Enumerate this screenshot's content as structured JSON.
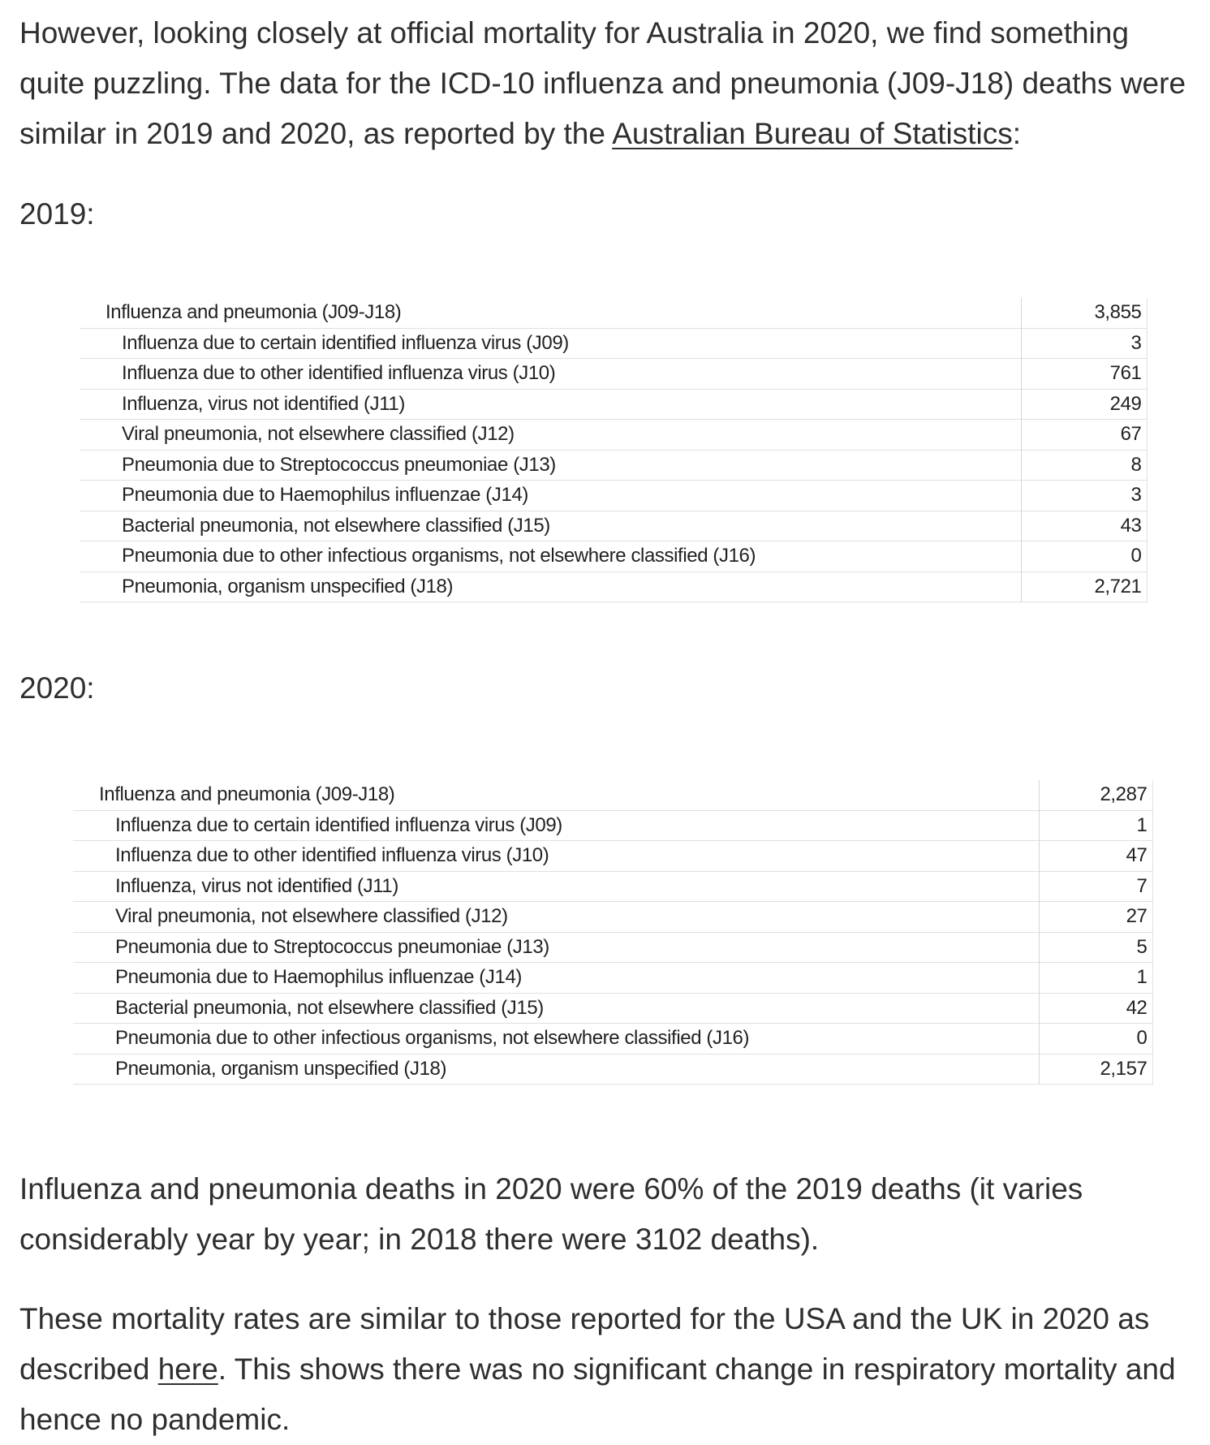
{
  "intro": {
    "before_link": "However, looking closely at official mortality for Australia in 2020, we find something quite puzzling. The data for the ICD-10 influenza and pneumonia (J09-J18) deaths were similar in 2019 and 2020, as reported by the ",
    "link_text": "Australian Bureau of Statistics",
    "after_link": ":"
  },
  "section_2019": {
    "heading": "2019:",
    "rows": [
      {
        "label": "Influenza and pneumonia (J09-J18)",
        "value": "3,855"
      },
      {
        "label": "Influenza due to certain identified influenza virus (J09)",
        "value": "3"
      },
      {
        "label": "Influenza due to other identified influenza virus (J10)",
        "value": "761"
      },
      {
        "label": "Influenza, virus not identified (J11)",
        "value": "249"
      },
      {
        "label": "Viral pneumonia, not elsewhere classified (J12)",
        "value": "67"
      },
      {
        "label": "Pneumonia due to Streptococcus pneumoniae (J13)",
        "value": "8"
      },
      {
        "label": "Pneumonia due to Haemophilus influenzae (J14)",
        "value": "3"
      },
      {
        "label": "Bacterial pneumonia, not elsewhere classified (J15)",
        "value": "43"
      },
      {
        "label": "Pneumonia due to other infectious organisms, not elsewhere classified (J16)",
        "value": "0"
      },
      {
        "label": "Pneumonia, organism unspecified (J18)",
        "value": "2,721"
      }
    ]
  },
  "section_2020": {
    "heading": "2020:",
    "rows": [
      {
        "label": "Influenza and pneumonia (J09-J18)",
        "value": "2,287"
      },
      {
        "label": "Influenza due to certain identified influenza virus (J09)",
        "value": "1"
      },
      {
        "label": "Influenza due to other identified influenza virus (J10)",
        "value": "47"
      },
      {
        "label": "Influenza, virus not identified (J11)",
        "value": "7"
      },
      {
        "label": "Viral pneumonia, not elsewhere classified (J12)",
        "value": "27"
      },
      {
        "label": "Pneumonia due to Streptococcus pneumoniae (J13)",
        "value": "5"
      },
      {
        "label": "Pneumonia due to Haemophilus influenzae (J14)",
        "value": "1"
      },
      {
        "label": "Bacterial pneumonia, not elsewhere classified (J15)",
        "value": "42"
      },
      {
        "label": "Pneumonia due to other infectious organisms, not elsewhere classified (J16)",
        "value": "0"
      },
      {
        "label": "Pneumonia, organism unspecified (J18)",
        "value": "2,157"
      }
    ]
  },
  "comparison": {
    "text": "Influenza and pneumonia deaths in 2020 were 60% of the 2019 deaths (it varies considerably year by year; in 2018 there were 3102 deaths)."
  },
  "conclusion": {
    "before_link": "These mortality rates are similar to those reported for the USA and the UK in 2020 as described ",
    "link_text": "here",
    "after_link": ". This shows there was no significant change in respiratory mortality and hence no pandemic."
  }
}
